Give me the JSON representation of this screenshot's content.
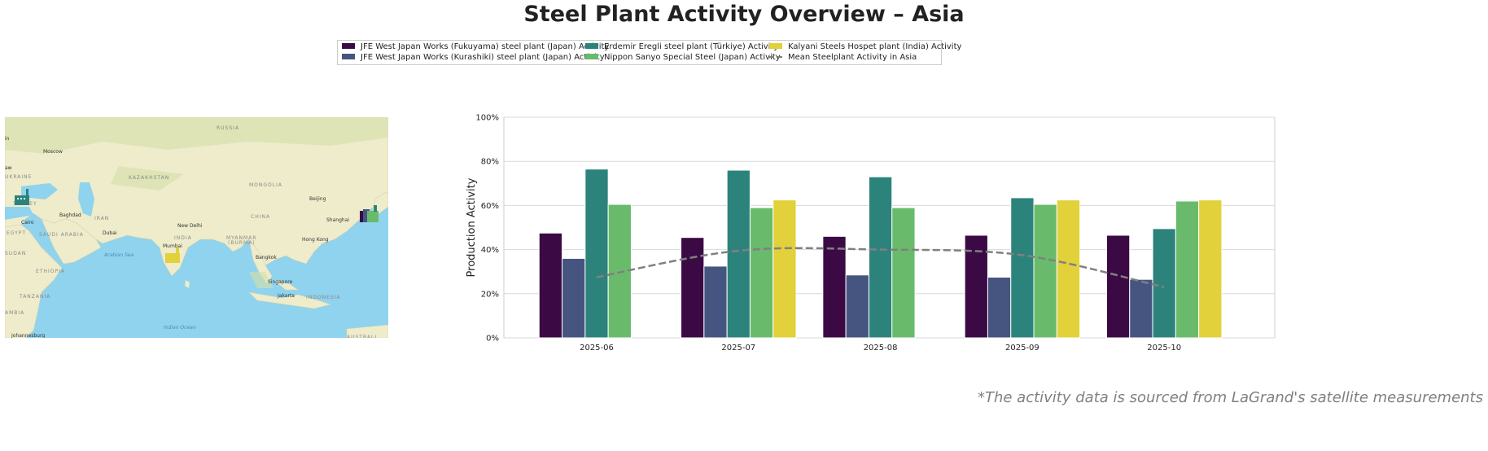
{
  "title": "Steel Plant Activity Overview – Asia",
  "footnote": "*The activity data is sourced from LaGrand's satellite measurements",
  "legend": [
    {
      "label": "JFE West Japan Works (Fukuyama) steel plant (Japan) Activity",
      "color": "#3b0a45"
    },
    {
      "label": "JFE West Japan Works (Kurashiki) steel plant (Japan) Activity",
      "color": "#45557f"
    },
    {
      "label": "Erdemir Eregli steel plant (Türkiye) Activity",
      "color": "#2c837c"
    },
    {
      "label": "Nippon Sanyo Special Steel (Japan) Activity",
      "color": "#69bb6b"
    },
    {
      "label": "Kalyani Steels Hospet plant (India) Activity",
      "color": "#e2d13a"
    },
    {
      "label": "Mean Steelplant Activity in Asia",
      "color": "#808080"
    }
  ],
  "map": {
    "labels": [
      "RUSSIA",
      "Moscow",
      "UKRAINE",
      "TURKEY",
      "KAZAKHSTAN",
      "MONGOLIA",
      "Beijing",
      "Baghdad",
      "IRAN",
      "Cairo",
      "EGYPT",
      "SAUDI ARABIA",
      "Dubai",
      "New Delhi",
      "INDIA",
      "CHINA",
      "Shanghai",
      "MYANMAR",
      "(BURMA)",
      "Hong Kong",
      "Mumbai",
      "Arabian Sea",
      "Bangkok",
      "SUDAN",
      "ETHIOPIA",
      "Singapore",
      "Jakarta",
      "INDONESIA",
      "TANZANIA",
      "Indian Ocean",
      "Johannesburg",
      "AMBIA",
      "AUSTRALI",
      "aw",
      "in"
    ],
    "markers": [
      "factory-icon-turkiye",
      "factory-icon-india",
      "factory-icon-japan"
    ]
  },
  "chart_data": {
    "type": "bar",
    "title": "",
    "xlabel": "",
    "ylabel": "Production Activity",
    "ylim": [
      0,
      100
    ],
    "yticks": [
      "0%",
      "20%",
      "40%",
      "60%",
      "80%",
      "100%"
    ],
    "grid": true,
    "categories": [
      "2025-06",
      "2025-07",
      "2025-08",
      "2025-09",
      "2025-10"
    ],
    "series": [
      {
        "name": "JFE West Japan Works (Fukuyama) steel plant (Japan) Activity",
        "color": "#3b0a45",
        "values": [
          47.5,
          45.5,
          46,
          46.5,
          46.5
        ]
      },
      {
        "name": "JFE West Japan Works (Kurashiki) steel plant (Japan) Activity",
        "color": "#45557f",
        "values": [
          36,
          32.5,
          28.5,
          27.5,
          26.5
        ]
      },
      {
        "name": "Erdemir Eregli steel plant (Türkiye) Activity",
        "color": "#2c837c",
        "values": [
          76.5,
          76,
          73,
          63.5,
          49.5
        ]
      },
      {
        "name": "Nippon Sanyo Special Steel (Japan) Activity",
        "color": "#69bb6b",
        "values": [
          60.5,
          59,
          59,
          60.5,
          62
        ]
      },
      {
        "name": "Kalyani Steels Hospet plant (India) Activity",
        "color": "#e2d13a",
        "values": [
          null,
          62.5,
          null,
          62.5,
          62.5
        ]
      }
    ],
    "mean_line": {
      "name": "Mean Steelplant Activity in Asia",
      "type": "line",
      "style": "dashed",
      "color": "#808080",
      "values": [
        27.5,
        39.5,
        40,
        37.5,
        23
      ]
    }
  }
}
